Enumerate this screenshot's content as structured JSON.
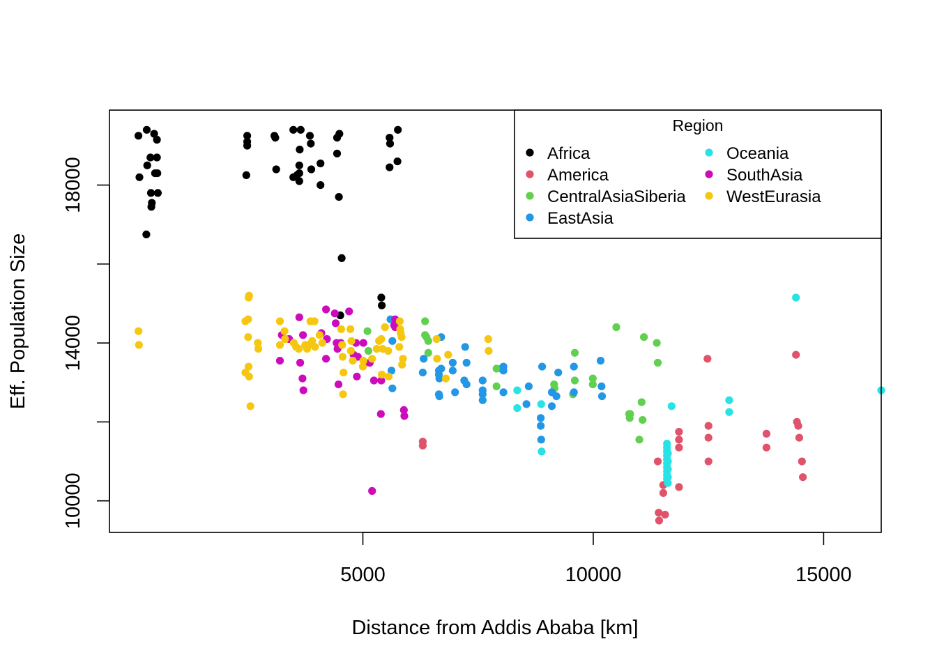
{
  "chart_data": {
    "type": "scatter",
    "title": "",
    "xlabel": "Distance from Addis Ababa [km]",
    "ylabel": "Eff. Population Size",
    "xlim": [
      -500,
      16250
    ],
    "ylim": [
      9200,
      19900
    ],
    "xticks": [
      5000,
      10000,
      15000
    ],
    "xtick_labels": [
      "5000",
      "10000",
      "15000"
    ],
    "yticks": [
      10000,
      12000,
      14000,
      16000,
      18000
    ],
    "ytick_labels": [
      "10000",
      "",
      "14000",
      "",
      "18000"
    ],
    "grid": false,
    "legend": {
      "title": "Region",
      "placement": "top-right"
    },
    "series": [
      {
        "name": "Africa",
        "color": "#000000",
        "points": [
          [
            130,
            19250
          ],
          [
            150,
            18200
          ],
          [
            310,
            19400
          ],
          [
            320,
            18500
          ],
          [
            390,
            18700
          ],
          [
            400,
            17800
          ],
          [
            410,
            17450
          ],
          [
            420,
            17550
          ],
          [
            470,
            19300
          ],
          [
            490,
            18300
          ],
          [
            530,
            19150
          ],
          [
            530,
            18700
          ],
          [
            540,
            18300
          ],
          [
            550,
            17800
          ],
          [
            300,
            16750
          ],
          [
            2490,
            19250
          ],
          [
            2490,
            19100
          ],
          [
            2490,
            19000
          ],
          [
            2470,
            18250
          ],
          [
            3080,
            19250
          ],
          [
            3100,
            19200
          ],
          [
            3120,
            18400
          ],
          [
            3490,
            19400
          ],
          [
            3650,
            19400
          ],
          [
            3490,
            18200
          ],
          [
            3570,
            18250
          ],
          [
            3620,
            18100
          ],
          [
            3620,
            18300
          ],
          [
            3630,
            18900
          ],
          [
            3620,
            18500
          ],
          [
            3850,
            19250
          ],
          [
            3870,
            19050
          ],
          [
            3880,
            18400
          ],
          [
            4080,
            18550
          ],
          [
            4080,
            18000
          ],
          [
            4440,
            19200
          ],
          [
            4490,
            19300
          ],
          [
            4440,
            18800
          ],
          [
            4480,
            17700
          ],
          [
            4540,
            16150
          ],
          [
            4510,
            14700
          ],
          [
            5580,
            19200
          ],
          [
            5590,
            19050
          ],
          [
            5580,
            18450
          ],
          [
            5760,
            19400
          ],
          [
            5750,
            18600
          ],
          [
            5400,
            15150
          ],
          [
            5410,
            14950
          ]
        ]
      },
      {
        "name": "America",
        "color": "#DF536B",
        "points": [
          [
            6300,
            11500
          ],
          [
            6300,
            11400
          ],
          [
            11400,
            11000
          ],
          [
            11420,
            9700
          ],
          [
            11430,
            9500
          ],
          [
            11520,
            10400
          ],
          [
            11520,
            10200
          ],
          [
            11560,
            9650
          ],
          [
            11860,
            11750
          ],
          [
            11860,
            11550
          ],
          [
            11860,
            11350
          ],
          [
            11860,
            10350
          ],
          [
            12480,
            13600
          ],
          [
            12500,
            11900
          ],
          [
            12500,
            11600
          ],
          [
            12500,
            11000
          ],
          [
            13760,
            11700
          ],
          [
            13760,
            11350
          ],
          [
            14400,
            13700
          ],
          [
            14420,
            12000
          ],
          [
            14450,
            11900
          ],
          [
            14470,
            11600
          ],
          [
            14530,
            11000
          ],
          [
            14550,
            10600
          ]
        ]
      },
      {
        "name": "CentralAsiaSiberia",
        "color": "#61D04F",
        "points": [
          [
            5100,
            14300
          ],
          [
            5120,
            13800
          ],
          [
            6350,
            14550
          ],
          [
            6350,
            14200
          ],
          [
            6380,
            14150
          ],
          [
            6420,
            14050
          ],
          [
            6420,
            13750
          ],
          [
            7900,
            13350
          ],
          [
            7900,
            12900
          ],
          [
            8000,
            13350
          ],
          [
            9150,
            12950
          ],
          [
            9160,
            12850
          ],
          [
            9560,
            12700
          ],
          [
            9600,
            13750
          ],
          [
            9600,
            13050
          ],
          [
            9990,
            13100
          ],
          [
            9990,
            12950
          ],
          [
            10500,
            14400
          ],
          [
            10780,
            12200
          ],
          [
            10790,
            12100
          ],
          [
            10800,
            12200
          ],
          [
            11050,
            12500
          ],
          [
            11070,
            12050
          ],
          [
            11100,
            14150
          ],
          [
            11380,
            14000
          ],
          [
            11400,
            13500
          ],
          [
            11000,
            11550
          ]
        ]
      },
      {
        "name": "EastAsia",
        "color": "#2297E6",
        "points": [
          [
            5600,
            14600
          ],
          [
            5620,
            13300
          ],
          [
            5640,
            12850
          ],
          [
            5640,
            14050
          ],
          [
            6320,
            13600
          ],
          [
            6300,
            13250
          ],
          [
            6700,
            14150
          ],
          [
            6650,
            13300
          ],
          [
            6650,
            13200
          ],
          [
            6660,
            13100
          ],
          [
            6650,
            12700
          ],
          [
            6660,
            12650
          ],
          [
            6700,
            13350
          ],
          [
            6950,
            13300
          ],
          [
            6950,
            13500
          ],
          [
            7000,
            12750
          ],
          [
            7200,
            13050
          ],
          [
            7220,
            13900
          ],
          [
            7250,
            13500
          ],
          [
            7250,
            12950
          ],
          [
            7600,
            13050
          ],
          [
            7600,
            12800
          ],
          [
            7600,
            12550
          ],
          [
            7600,
            12700
          ],
          [
            8050,
            13400
          ],
          [
            8050,
            13300
          ],
          [
            8050,
            12750
          ],
          [
            8550,
            12450
          ],
          [
            8600,
            12900
          ],
          [
            8860,
            12100
          ],
          [
            8860,
            11900
          ],
          [
            8870,
            11550
          ],
          [
            8890,
            13400
          ],
          [
            9100,
            12750
          ],
          [
            9100,
            12400
          ],
          [
            9200,
            12650
          ],
          [
            9240,
            13250
          ],
          [
            9580,
            13400
          ],
          [
            9580,
            12750
          ],
          [
            10160,
            13550
          ],
          [
            10180,
            12900
          ],
          [
            10190,
            12650
          ]
        ]
      },
      {
        "name": "Oceania",
        "color": "#28E2E5",
        "points": [
          [
            8350,
            12800
          ],
          [
            8350,
            12350
          ],
          [
            8870,
            12450
          ],
          [
            8880,
            11250
          ],
          [
            11600,
            11450
          ],
          [
            11600,
            11350
          ],
          [
            11600,
            11250
          ],
          [
            11600,
            11150
          ],
          [
            11600,
            11050
          ],
          [
            11600,
            10950
          ],
          [
            11600,
            10850
          ],
          [
            11600,
            10750
          ],
          [
            11600,
            10650
          ],
          [
            11600,
            10550
          ],
          [
            11620,
            11200
          ],
          [
            11620,
            11000
          ],
          [
            11620,
            10800
          ],
          [
            11620,
            10600
          ],
          [
            11620,
            10450
          ],
          [
            11700,
            12400
          ],
          [
            12950,
            12550
          ],
          [
            12950,
            12250
          ],
          [
            14400,
            15150
          ],
          [
            16250,
            12800
          ]
        ]
      },
      {
        "name": "SouthAsia",
        "color": "#CD0BBC",
        "points": [
          [
            3200,
            13550
          ],
          [
            3240,
            14200
          ],
          [
            3400,
            14100
          ],
          [
            3620,
            14650
          ],
          [
            3640,
            13500
          ],
          [
            3690,
            13100
          ],
          [
            3700,
            14200
          ],
          [
            3710,
            12800
          ],
          [
            4100,
            14250
          ],
          [
            4200,
            14850
          ],
          [
            4220,
            14100
          ],
          [
            4200,
            13600
          ],
          [
            4390,
            14750
          ],
          [
            4410,
            14500
          ],
          [
            4430,
            14000
          ],
          [
            4450,
            13850
          ],
          [
            4470,
            12950
          ],
          [
            4520,
            14000
          ],
          [
            4700,
            14800
          ],
          [
            4800,
            13700
          ],
          [
            4850,
            14000
          ],
          [
            4870,
            13150
          ],
          [
            4890,
            13650
          ],
          [
            5010,
            14000
          ],
          [
            5050,
            13500
          ],
          [
            5150,
            13500
          ],
          [
            5200,
            10250
          ],
          [
            5240,
            13050
          ],
          [
            5390,
            12200
          ],
          [
            5400,
            13050
          ],
          [
            5680,
            14450
          ],
          [
            5700,
            14600
          ],
          [
            5890,
            12300
          ],
          [
            5900,
            12150
          ],
          [
            5700,
            14400
          ]
        ]
      },
      {
        "name": "WestEurasia",
        "color": "#F5C710",
        "points": [
          [
            130,
            14300
          ],
          [
            140,
            13950
          ],
          [
            2450,
            14550
          ],
          [
            2450,
            13250
          ],
          [
            2510,
            14600
          ],
          [
            2520,
            15150
          ],
          [
            2530,
            15200
          ],
          [
            2510,
            14150
          ],
          [
            2520,
            13400
          ],
          [
            2530,
            13150
          ],
          [
            2560,
            12400
          ],
          [
            2720,
            14000
          ],
          [
            2730,
            13850
          ],
          [
            3200,
            14550
          ],
          [
            3200,
            13950
          ],
          [
            3300,
            14300
          ],
          [
            3310,
            14100
          ],
          [
            3500,
            14000
          ],
          [
            3550,
            13900
          ],
          [
            3610,
            13850
          ],
          [
            3750,
            13950
          ],
          [
            3790,
            13850
          ],
          [
            3820,
            13950
          ],
          [
            3860,
            14550
          ],
          [
            3900,
            14050
          ],
          [
            3950,
            14550
          ],
          [
            3960,
            13900
          ],
          [
            4060,
            14200
          ],
          [
            4120,
            14000
          ],
          [
            4530,
            14350
          ],
          [
            4550,
            13950
          ],
          [
            4560,
            13650
          ],
          [
            4570,
            12700
          ],
          [
            4580,
            13250
          ],
          [
            4730,
            14350
          ],
          [
            4740,
            13800
          ],
          [
            4750,
            14050
          ],
          [
            4780,
            13550
          ],
          [
            5000,
            13400
          ],
          [
            5010,
            13550
          ],
          [
            5200,
            13600
          ],
          [
            5300,
            13850
          ],
          [
            5350,
            14050
          ],
          [
            5400,
            14100
          ],
          [
            5410,
            13200
          ],
          [
            5430,
            13850
          ],
          [
            5480,
            14400
          ],
          [
            5550,
            13800
          ],
          [
            5560,
            13150
          ],
          [
            5800,
            14550
          ],
          [
            5810,
            14350
          ],
          [
            5820,
            14250
          ],
          [
            5840,
            14150
          ],
          [
            5850,
            13450
          ],
          [
            5870,
            13600
          ],
          [
            5790,
            13900
          ],
          [
            6600,
            14100
          ],
          [
            6610,
            13600
          ],
          [
            6800,
            13100
          ],
          [
            6850,
            13700
          ],
          [
            7720,
            14100
          ],
          [
            7730,
            13800
          ]
        ]
      }
    ]
  }
}
